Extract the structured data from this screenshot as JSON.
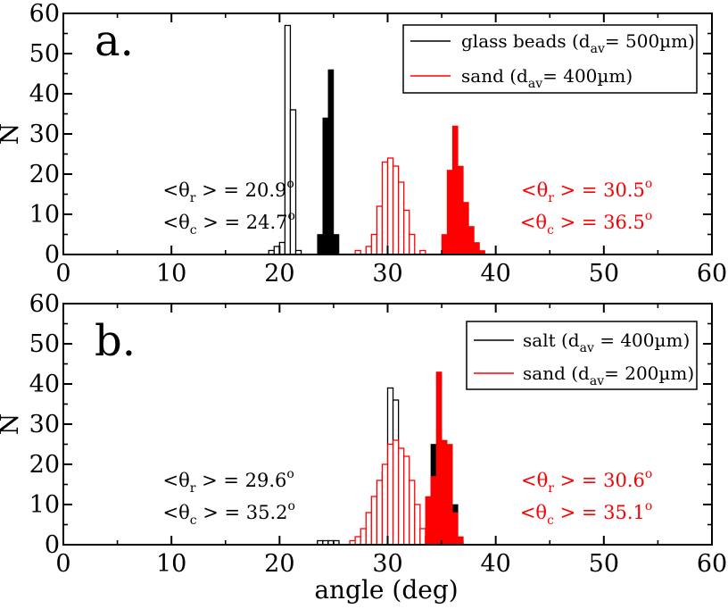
{
  "chart_data": [
    {
      "type": "bar",
      "panel_label": "a.",
      "xlabel": "",
      "ylabel": "N",
      "xlim": [
        0,
        60
      ],
      "ylim": [
        0,
        60
      ],
      "xticks": [
        0,
        10,
        20,
        30,
        40,
        50,
        60
      ],
      "yticks": [
        0,
        10,
        20,
        30,
        40,
        50,
        60
      ],
      "legend_placement": "top-right",
      "series": [
        {
          "name": "glass beads (d_av= 500µm)",
          "legend_main": "glass beads (d",
          "legend_sub": "av",
          "legend_tail": "= 500µm)",
          "color": "#000000",
          "show_in_legend": true,
          "style": "outline",
          "bin_width": 0.5,
          "bins": [
            [
              19.0,
              1
            ],
            [
              19.5,
              2
            ],
            [
              20.0,
              3
            ],
            [
              20.5,
              57
            ],
            [
              21.0,
              36
            ],
            [
              21.5,
              1
            ]
          ]
        },
        {
          "name": "",
          "color": "#000000",
          "show_in_legend": false,
          "style": "filled",
          "bin_width": 0.5,
          "bins": [
            [
              23.5,
              5
            ],
            [
              24.0,
              34
            ],
            [
              24.5,
              46
            ],
            [
              25.0,
              5
            ]
          ]
        },
        {
          "name": "sand (d_av= 400µm)",
          "legend_main": "sand (d",
          "legend_sub": "av",
          "legend_tail": "= 400µm)",
          "color": "#ff0000",
          "show_in_legend": true,
          "style": "outline",
          "bin_width": 0.5,
          "bins": [
            [
              27.0,
              1
            ],
            [
              28.0,
              2
            ],
            [
              28.5,
              5
            ],
            [
              29.0,
              12
            ],
            [
              29.5,
              23
            ],
            [
              30.0,
              24
            ],
            [
              30.5,
              22
            ],
            [
              31.0,
              18
            ],
            [
              31.5,
              11
            ],
            [
              32.0,
              5
            ],
            [
              33.0,
              1
            ]
          ]
        },
        {
          "name": "",
          "color": "#ff0000",
          "show_in_legend": false,
          "style": "filled",
          "bin_width": 0.5,
          "bins": [
            [
              35.0,
              5
            ],
            [
              35.5,
              21
            ],
            [
              36.0,
              32
            ],
            [
              36.5,
              22
            ],
            [
              37.0,
              13
            ],
            [
              37.5,
              7
            ],
            [
              38.0,
              3
            ],
            [
              38.5,
              1
            ]
          ]
        }
      ],
      "annotations": [
        {
          "color": "#000000",
          "anchor": "start",
          "x_data": 9.2,
          "lines": [
            {
              "y_data": 14.5,
              "greek": "θ",
              "sub": "r",
              "value": "> = 20.9",
              "sup": "o"
            },
            {
              "y_data": 6.5,
              "greek": "θ",
              "sub": "c",
              "value": "> = 24.7",
              "sup": "o"
            }
          ]
        },
        {
          "color": "#ff0000",
          "anchor": "end",
          "x_data": 54.5,
          "lines": [
            {
              "y_data": 14.5,
              "greek": "θ",
              "sub": "r",
              "value": "> = 30.5",
              "sup": "o"
            },
            {
              "y_data": 6.5,
              "greek": "θ",
              "sub": "c",
              "value": "> = 36.5",
              "sup": "o"
            }
          ]
        }
      ]
    },
    {
      "type": "bar",
      "panel_label": "b.",
      "xlabel": "angle (deg)",
      "ylabel": "N",
      "xlim": [
        0,
        60
      ],
      "ylim": [
        0,
        60
      ],
      "xticks": [
        0,
        10,
        20,
        30,
        40,
        50,
        60
      ],
      "yticks": [
        0,
        10,
        20,
        30,
        40,
        50,
        60
      ],
      "legend_placement": "top-right",
      "series": [
        {
          "name": "salt (d_av = 400µm)",
          "legend_main": "salt (d",
          "legend_sub": "av",
          "legend_tail": " = 400µm)",
          "color": "#000000",
          "show_in_legend": true,
          "style": "outline",
          "bin_width": 0.5,
          "bins": [
            [
              23.5,
              1
            ],
            [
              24.0,
              1
            ],
            [
              24.5,
              1
            ],
            [
              25.0,
              1
            ],
            [
              28.5,
              3
            ],
            [
              29.0,
              10
            ],
            [
              29.5,
              18
            ],
            [
              30.0,
              39
            ],
            [
              30.5,
              36
            ],
            [
              31.0,
              4
            ],
            [
              31.5,
              4
            ],
            [
              32.0,
              1
            ]
          ]
        },
        {
          "name": "",
          "color": "#000000",
          "show_in_legend": false,
          "style": "filled",
          "bin_width": 0.5,
          "bins": [
            [
              34.0,
              25
            ],
            [
              34.5,
              23
            ],
            [
              35.0,
              23
            ],
            [
              35.5,
              12
            ],
            [
              36.0,
              10
            ],
            [
              36.5,
              1
            ]
          ]
        },
        {
          "name": "sand (d_av= 200µm)",
          "legend_main": "sand (d",
          "legend_sub": "av",
          "legend_tail": "= 200µm)",
          "color": "#ff0000",
          "show_in_legend": true,
          "style": "outline",
          "bin_width": 0.5,
          "bins": [
            [
              26.5,
              1
            ],
            [
              27.0,
              2
            ],
            [
              27.5,
              4
            ],
            [
              28.0,
              8
            ],
            [
              28.5,
              12
            ],
            [
              29.0,
              16
            ],
            [
              29.5,
              20
            ],
            [
              30.0,
              25
            ],
            [
              30.5,
              26
            ],
            [
              31.0,
              24
            ],
            [
              31.5,
              22
            ],
            [
              32.0,
              16
            ],
            [
              32.5,
              10
            ],
            [
              33.0,
              4
            ],
            [
              33.5,
              2
            ]
          ]
        },
        {
          "name": "",
          "color": "#ff0000",
          "show_in_legend": false,
          "style": "filled",
          "bin_width": 0.5,
          "bins": [
            [
              33.5,
              12
            ],
            [
              34.0,
              17
            ],
            [
              34.5,
              43
            ],
            [
              35.0,
              26
            ],
            [
              35.5,
              25
            ],
            [
              36.0,
              8
            ],
            [
              36.5,
              2
            ]
          ]
        }
      ],
      "annotations": [
        {
          "color": "#000000",
          "anchor": "start",
          "x_data": 9.2,
          "lines": [
            {
              "y_data": 14.5,
              "greek": "θ",
              "sub": "r",
              "value": "> = 29.6",
              "sup": "o"
            },
            {
              "y_data": 6.5,
              "greek": "θ",
              "sub": "c",
              "value": "> = 35.2",
              "sup": "o"
            }
          ]
        },
        {
          "color": "#ff0000",
          "anchor": "end",
          "x_data": 54.5,
          "lines": [
            {
              "y_data": 14.5,
              "greek": "θ",
              "sub": "r",
              "value": "> = 30.6",
              "sup": "o"
            },
            {
              "y_data": 6.5,
              "greek": "θ",
              "sub": "c",
              "value": "> = 35.1",
              "sup": "o"
            }
          ]
        }
      ]
    }
  ]
}
